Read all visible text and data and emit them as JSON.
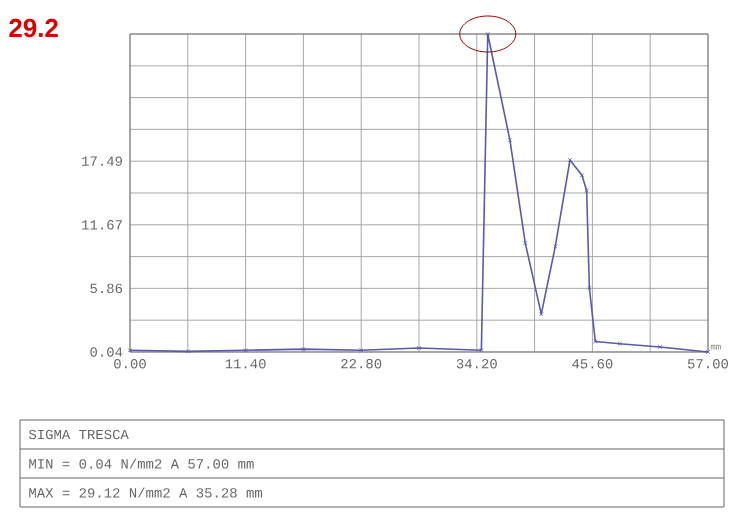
{
  "chart_data": {
    "type": "line",
    "x": [
      0,
      5.7,
      11.4,
      17.1,
      22.8,
      28.5,
      34.65,
      35.28,
      37.47,
      38.98,
      40.56,
      41.94,
      43.39,
      44.57,
      45.03,
      45.3,
      45.89,
      48.3,
      52.26,
      57
    ],
    "series": [
      {
        "color": "#5a5aaa",
        "values": [
          0.2,
          0.1,
          0.2,
          0.3,
          0.2,
          0.4,
          0.2,
          29.12,
          19.4,
          10.0,
          3.5,
          9.7,
          17.6,
          16.2,
          14.8,
          5.9,
          1.0,
          0.8,
          0.5,
          0.04
        ]
      }
    ],
    "xlabel": "mm",
    "xlim": [
      0,
      57
    ],
    "ylim": [
      0.04,
      29.12
    ],
    "xticks": [
      {
        "value": 0,
        "label": "0.00"
      },
      {
        "value": 5.7,
        "label": null
      },
      {
        "value": 11.4,
        "label": "11.40"
      },
      {
        "value": 17.1,
        "label": null
      },
      {
        "value": 22.8,
        "label": "22.80"
      },
      {
        "value": 28.5,
        "label": null
      },
      {
        "value": 34.2,
        "label": "34.20"
      },
      {
        "value": 39.9,
        "label": null
      },
      {
        "value": 45.6,
        "label": "45.60"
      },
      {
        "value": 51.3,
        "label": null
      },
      {
        "value": 57,
        "label": "57.00"
      }
    ],
    "yticks": [
      0.04,
      {
        "value": 2.95,
        "label": null
      },
      5.86,
      {
        "value": 8.76,
        "label": null
      },
      11.67,
      {
        "value": 14.58,
        "label": null
      },
      17.49,
      {
        "value": 20.4,
        "label": null
      },
      {
        "value": 23.3,
        "label": null
      },
      {
        "value": 26.21,
        "label": null
      },
      {
        "value": 29.12,
        "label": null
      }
    ],
    "grid": true,
    "marker": "cross",
    "line_style": "solid",
    "annotations": [
      "29.2",
      "SIGMA TRESCA",
      "MIN = 0.04 N/mm2  A 57.00 mm",
      "MAX = 29.12 N/mm2  A 35.28 mm"
    ]
  }
}
